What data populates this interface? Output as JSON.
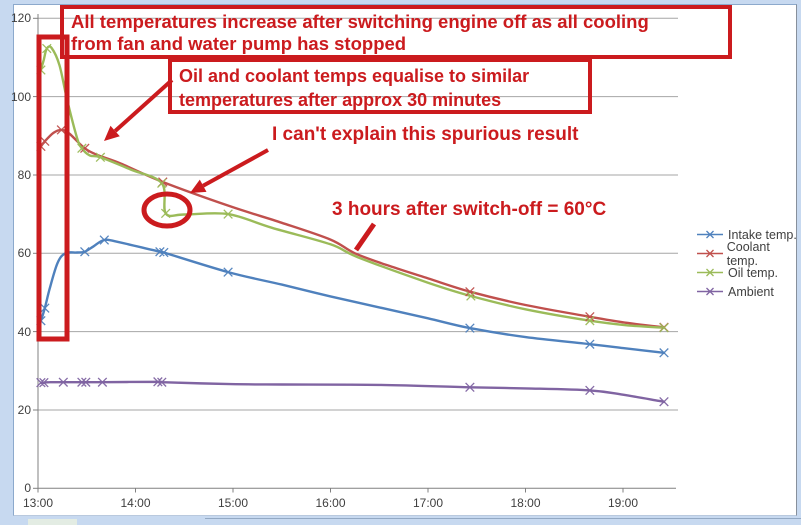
{
  "window": {
    "frame_color": "#c7d9f0",
    "panel_color": "#ffffff",
    "gridline_color": "#a6a6a6",
    "axis_color": "#808080"
  },
  "chart_data": {
    "type": "line",
    "title": "",
    "xlabel": "",
    "ylabel": "",
    "grid": true,
    "legend_position": "right",
    "ylim": [
      0,
      120
    ],
    "xlim_hours": [
      13.0,
      19.55
    ],
    "y_ticks": [
      0,
      20,
      40,
      60,
      80,
      100,
      120
    ],
    "x_ticks": [
      {
        "hour": 13,
        "label": "13:00"
      },
      {
        "hour": 14,
        "label": "14:00"
      },
      {
        "hour": 15,
        "label": "15:00"
      },
      {
        "hour": 16,
        "label": "16:00"
      },
      {
        "hour": 17,
        "label": "17:00"
      },
      {
        "hour": 18,
        "label": "18:00"
      },
      {
        "hour": 19,
        "label": "19:00"
      }
    ],
    "series": [
      {
        "name": "Intake temp.",
        "color": "#4f81bd",
        "points": [
          [
            13.03,
            42.8
          ],
          [
            13.07,
            46.0
          ],
          [
            13.12,
            51.0
          ],
          [
            13.2,
            57.5
          ],
          [
            13.28,
            60.0
          ],
          [
            13.4,
            60.2
          ],
          [
            13.48,
            60.4
          ],
          [
            13.57,
            61.8
          ],
          [
            13.68,
            63.4
          ],
          [
            13.82,
            62.9
          ],
          [
            14.25,
            60.4
          ],
          [
            14.29,
            60.2
          ],
          [
            14.95,
            55.2
          ],
          [
            15.5,
            52.0
          ],
          [
            16.0,
            49.0
          ],
          [
            16.5,
            46.2
          ],
          [
            17.0,
            43.4
          ],
          [
            17.43,
            40.9
          ],
          [
            18.0,
            38.6
          ],
          [
            18.66,
            36.8
          ],
          [
            19.0,
            35.8
          ],
          [
            19.42,
            34.6
          ]
        ],
        "markers": [
          [
            13.03,
            42.8
          ],
          [
            13.07,
            46.0
          ],
          [
            13.48,
            60.4
          ],
          [
            13.68,
            63.4
          ],
          [
            14.25,
            60.4
          ],
          [
            14.29,
            60.2
          ],
          [
            14.95,
            55.2
          ],
          [
            17.43,
            40.9
          ],
          [
            18.66,
            36.8
          ],
          [
            19.42,
            34.6
          ]
        ]
      },
      {
        "name": "Coolant temp.",
        "color": "#c0504d",
        "points": [
          [
            13.03,
            87.3
          ],
          [
            13.07,
            88.6
          ],
          [
            13.16,
            90.8
          ],
          [
            13.24,
            91.5
          ],
          [
            13.32,
            90.6
          ],
          [
            13.48,
            86.8
          ],
          [
            13.62,
            85.0
          ],
          [
            13.85,
            82.9
          ],
          [
            14.28,
            78.2
          ],
          [
            14.97,
            72.0
          ],
          [
            15.5,
            67.8
          ],
          [
            16.0,
            63.5
          ],
          [
            16.25,
            60.0
          ],
          [
            16.6,
            56.8
          ],
          [
            17.0,
            53.6
          ],
          [
            17.43,
            50.2
          ],
          [
            18.0,
            46.8
          ],
          [
            18.66,
            43.8
          ],
          [
            19.05,
            42.2
          ],
          [
            19.42,
            41.1
          ]
        ],
        "markers": [
          [
            13.03,
            87.3
          ],
          [
            13.07,
            88.6
          ],
          [
            13.24,
            91.5
          ],
          [
            13.48,
            86.8
          ],
          [
            14.28,
            78.2
          ],
          [
            17.43,
            50.2
          ],
          [
            18.66,
            43.8
          ],
          [
            19.42,
            41.1
          ]
        ]
      },
      {
        "name": "Oil temp.",
        "color": "#9bbb59",
        "points": [
          [
            13.03,
            106.8
          ],
          [
            13.06,
            109.5
          ],
          [
            13.09,
            112.3
          ],
          [
            13.14,
            112.4
          ],
          [
            13.22,
            108.0
          ],
          [
            13.3,
            99.0
          ],
          [
            13.4,
            89.5
          ],
          [
            13.45,
            86.8
          ],
          [
            13.53,
            85.0
          ],
          [
            13.64,
            84.5
          ],
          [
            13.95,
            81.4
          ],
          [
            14.27,
            77.9
          ],
          [
            14.31,
            70.2
          ],
          [
            14.5,
            69.9
          ],
          [
            14.95,
            70.0
          ],
          [
            15.4,
            66.5
          ],
          [
            16.0,
            62.3
          ],
          [
            16.28,
            59.0
          ],
          [
            17.0,
            52.5
          ],
          [
            17.44,
            49.1
          ],
          [
            18.0,
            45.7
          ],
          [
            18.66,
            42.8
          ],
          [
            19.05,
            41.6
          ],
          [
            19.42,
            41.0
          ]
        ],
        "markers": [
          [
            13.03,
            106.8
          ],
          [
            13.09,
            112.3
          ],
          [
            13.45,
            86.8
          ],
          [
            13.64,
            84.5
          ],
          [
            14.27,
            77.9
          ],
          [
            14.31,
            70.2
          ],
          [
            14.95,
            70.0
          ],
          [
            17.44,
            49.1
          ],
          [
            18.66,
            42.8
          ],
          [
            19.42,
            41.0
          ]
        ]
      },
      {
        "name": "Ambient",
        "color": "#8064a2",
        "points": [
          [
            13.03,
            27.0
          ],
          [
            13.06,
            27.0
          ],
          [
            13.12,
            27.1
          ],
          [
            13.26,
            27.1
          ],
          [
            13.45,
            27.1
          ],
          [
            13.66,
            27.1
          ],
          [
            14.23,
            27.2
          ],
          [
            14.27,
            27.1
          ],
          [
            14.97,
            26.6
          ],
          [
            15.5,
            26.5
          ],
          [
            16.5,
            26.4
          ],
          [
            17.43,
            25.8
          ],
          [
            18.0,
            25.5
          ],
          [
            18.66,
            25.0
          ],
          [
            19.0,
            23.9
          ],
          [
            19.42,
            22.1
          ]
        ],
        "markers": [
          [
            13.03,
            27.0
          ],
          [
            13.06,
            27.0
          ],
          [
            13.26,
            27.1
          ],
          [
            13.45,
            27.1
          ],
          [
            13.49,
            27.1
          ],
          [
            13.66,
            27.1
          ],
          [
            14.23,
            27.2
          ],
          [
            14.27,
            27.1
          ],
          [
            17.43,
            25.8
          ],
          [
            18.66,
            25.0
          ],
          [
            19.42,
            22.1
          ]
        ]
      }
    ]
  },
  "annotations": {
    "color": "#cb1b1e",
    "box1_lines": [
      "All temperatures increase after switching engine off as all cooling",
      "from fan and water pump has stopped"
    ],
    "box2_lines": [
      "Oil and coolant temps equalise to similar",
      "temperatures after approx 30 minutes"
    ],
    "spurious": "I can't explain this spurious result",
    "three_hours": "3 hours after switch-off = 60°C"
  }
}
